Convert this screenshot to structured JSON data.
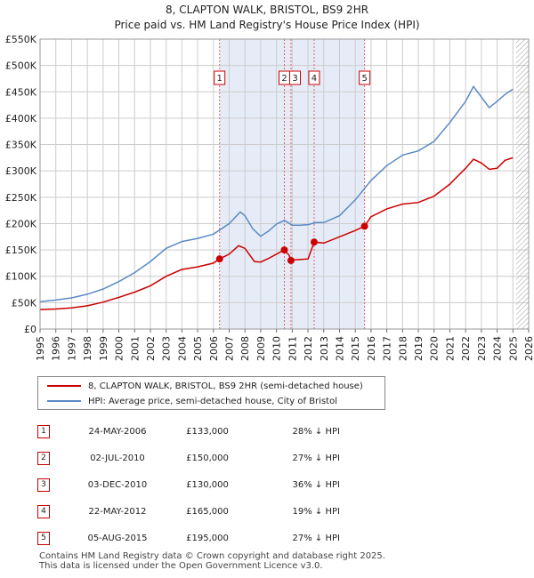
{
  "title_line1": "8, CLAPTON WALK, BRISTOL, BS9 2HR",
  "title_line2": "Price paid vs. HM Land Registry's House Price Index (HPI)",
  "legend": {
    "property_label": "8, CLAPTON WALK, BRISTOL, BS9 2HR (semi-detached house)",
    "hpi_label": "HPI: Average price, semi-detached house, City of Bristol"
  },
  "colors": {
    "property": "#cc0000",
    "hpi": "#5a8ac6",
    "shade": "#e6ecf7",
    "grid": "#cccccc"
  },
  "sales": [
    {
      "num": "1",
      "date": "24-MAY-2006",
      "price": "£133,000",
      "hpi": "28% ↓ HPI",
      "year": 2006.39,
      "value": 133000
    },
    {
      "num": "2",
      "date": "02-JUL-2010",
      "price": "£150,000",
      "hpi": "27% ↓ HPI",
      "year": 2010.5,
      "value": 150000
    },
    {
      "num": "3",
      "date": "03-DEC-2010",
      "price": "£130,000",
      "hpi": "36% ↓ HPI",
      "year": 2010.92,
      "value": 130000
    },
    {
      "num": "4",
      "date": "22-MAY-2012",
      "price": "£165,000",
      "hpi": "19% ↓ HPI",
      "year": 2012.39,
      "value": 165000
    },
    {
      "num": "5",
      "date": "05-AUG-2015",
      "price": "£195,000",
      "hpi": "27% ↓ HPI",
      "year": 2015.59,
      "value": 195000
    }
  ],
  "footer_line1": "Contains HM Land Registry data © Crown copyright and database right 2025.",
  "footer_line2": "This data is licensed under the Open Government Licence v3.0.",
  "chart_data": {
    "type": "line",
    "title": "8, CLAPTON WALK, BRISTOL, BS9 2HR",
    "subtitle": "Price paid vs. HM Land Registry's House Price Index (HPI)",
    "xlabel": "",
    "ylabel": "",
    "xlim": [
      1995,
      2026
    ],
    "ylim": [
      0,
      550000
    ],
    "x_ticks": [
      "1995",
      "1996",
      "1997",
      "1998",
      "1999",
      "2000",
      "2001",
      "2002",
      "2003",
      "2004",
      "2005",
      "2006",
      "2007",
      "2008",
      "2009",
      "2010",
      "2011",
      "2012",
      "2013",
      "2014",
      "2015",
      "2016",
      "2017",
      "2018",
      "2019",
      "2020",
      "2021",
      "2022",
      "2023",
      "2024",
      "2025",
      "2026"
    ],
    "y_ticks": [
      {
        "v": 0,
        "label": "£0"
      },
      {
        "v": 50000,
        "label": "£50K"
      },
      {
        "v": 100000,
        "label": "£100K"
      },
      {
        "v": 150000,
        "label": "£150K"
      },
      {
        "v": 200000,
        "label": "£200K"
      },
      {
        "v": 250000,
        "label": "£250K"
      },
      {
        "v": 300000,
        "label": "£300K"
      },
      {
        "v": 350000,
        "label": "£350K"
      },
      {
        "v": 400000,
        "label": "£400K"
      },
      {
        "v": 450000,
        "label": "£450K"
      },
      {
        "v": 500000,
        "label": "£500K"
      },
      {
        "v": 550000,
        "label": "£550K"
      }
    ],
    "grid": true,
    "shaded_span": [
      2006.39,
      2015.59
    ],
    "future_hatch_from": 2025.2,
    "series": [
      {
        "name": "8, CLAPTON WALK, BRISTOL, BS9 2HR (semi-detached house)",
        "x": [
          1995,
          1996,
          1997,
          1998,
          1999,
          2000,
          2001,
          2002,
          2003,
          2004,
          2005,
          2006,
          2006.39,
          2007,
          2007.6,
          2008,
          2008.6,
          2009,
          2009.5,
          2010,
          2010.5,
          2010.8,
          2010.92,
          2011,
          2012,
          2012.39,
          2013,
          2014,
          2015,
          2015.59,
          2016,
          2017,
          2018,
          2019,
          2020,
          2021,
          2022,
          2022.5,
          2023,
          2023.5,
          2024,
          2024.5,
          2025
        ],
        "values": [
          37000,
          38000,
          40000,
          44000,
          51000,
          60000,
          70000,
          82000,
          100000,
          113000,
          118000,
          125000,
          133000,
          142000,
          158000,
          153000,
          128000,
          127000,
          134000,
          142000,
          150000,
          140000,
          130000,
          131000,
          133000,
          165000,
          163000,
          175000,
          187000,
          195000,
          213000,
          228000,
          237000,
          240000,
          252000,
          275000,
          305000,
          322000,
          315000,
          303000,
          305000,
          320000,
          325000
        ]
      },
      {
        "name": "HPI: Average price, semi-detached house, City of Bristol",
        "x": [
          1995,
          1996,
          1997,
          1998,
          1999,
          2000,
          2001,
          2002,
          2003,
          2004,
          2005,
          2006,
          2007,
          2007.7,
          2008,
          2008.5,
          2009,
          2009.5,
          2010,
          2010.5,
          2011,
          2011.5,
          2012,
          2012.5,
          2013,
          2014,
          2015,
          2016,
          2017,
          2018,
          2019,
          2020,
          2021,
          2022,
          2022.5,
          2023,
          2023.5,
          2024,
          2024.5,
          2025
        ],
        "values": [
          52000,
          55000,
          59000,
          66000,
          76000,
          90000,
          107000,
          128000,
          153000,
          166000,
          172000,
          180000,
          200000,
          222000,
          215000,
          190000,
          176000,
          186000,
          199000,
          206000,
          197000,
          197000,
          198000,
          202000,
          202000,
          215000,
          245000,
          282000,
          310000,
          330000,
          338000,
          356000,
          392000,
          432000,
          460000,
          440000,
          420000,
          432000,
          445000,
          455000
        ]
      }
    ]
  }
}
